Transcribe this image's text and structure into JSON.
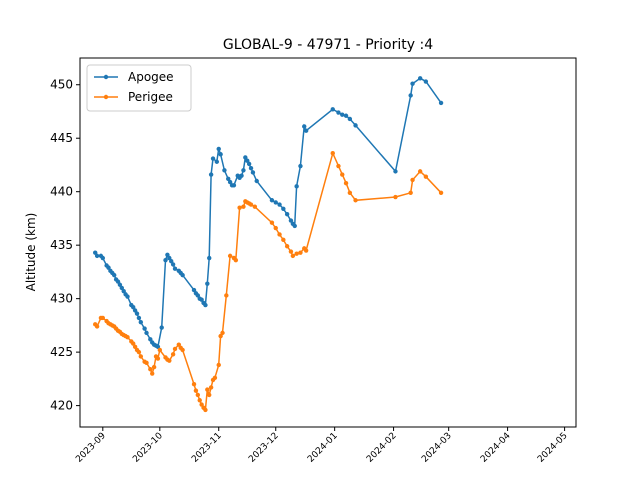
{
  "chart_data": {
    "type": "line",
    "title": "GLOBAL-9 - 47971 - Priority :4",
    "xlabel": "",
    "ylabel": "Altitude (km)",
    "ylim": [
      418,
      452.5
    ],
    "xlim": [
      "2023-08-20",
      "2024-05-07"
    ],
    "y_ticks": [
      420,
      425,
      430,
      435,
      440,
      445,
      450
    ],
    "x_ticks": [
      "2023-09",
      "2023-10",
      "2023-11",
      "2023-12",
      "2024-01",
      "2024-02",
      "2024-03",
      "2024-04",
      "2024-05"
    ],
    "grid": false,
    "legend": "top-left",
    "colors": {
      "Apogee": "#1f77b4",
      "Perigee": "#ff7f0e"
    },
    "series": [
      {
        "name": "Apogee",
        "points": [
          [
            "2023-08-28",
            434.3
          ],
          [
            "2023-08-29",
            434.0
          ],
          [
            "2023-08-31",
            434.0
          ],
          [
            "2023-09-01",
            433.8
          ],
          [
            "2023-09-03",
            433.1
          ],
          [
            "2023-09-04",
            432.9
          ],
          [
            "2023-09-05",
            432.6
          ],
          [
            "2023-09-06",
            432.4
          ],
          [
            "2023-09-07",
            432.2
          ],
          [
            "2023-09-08",
            431.8
          ],
          [
            "2023-09-09",
            431.6
          ],
          [
            "2023-09-10",
            431.3
          ],
          [
            "2023-09-11",
            431.0
          ],
          [
            "2023-09-12",
            430.7
          ],
          [
            "2023-09-13",
            430.4
          ],
          [
            "2023-09-14",
            430.2
          ],
          [
            "2023-09-16",
            429.4
          ],
          [
            "2023-09-17",
            429.2
          ],
          [
            "2023-09-18",
            428.9
          ],
          [
            "2023-09-19",
            428.6
          ],
          [
            "2023-09-20",
            428.2
          ],
          [
            "2023-09-21",
            427.8
          ],
          [
            "2023-09-23",
            427.2
          ],
          [
            "2023-09-24",
            426.8
          ],
          [
            "2023-09-26",
            426.2
          ],
          [
            "2023-09-27",
            425.9
          ],
          [
            "2023-09-28",
            425.7
          ],
          [
            "2023-09-29",
            425.6
          ],
          [
            "2023-09-30",
            425.5
          ],
          [
            "2023-10-02",
            427.3
          ],
          [
            "2023-10-04",
            433.6
          ],
          [
            "2023-10-05",
            434.1
          ],
          [
            "2023-10-06",
            433.8
          ],
          [
            "2023-10-07",
            433.5
          ],
          [
            "2023-10-08",
            433.2
          ],
          [
            "2023-10-09",
            432.8
          ],
          [
            "2023-10-11",
            432.6
          ],
          [
            "2023-10-12",
            432.4
          ],
          [
            "2023-10-13",
            432.2
          ],
          [
            "2023-10-19",
            430.8
          ],
          [
            "2023-10-20",
            430.5
          ],
          [
            "2023-10-21",
            430.3
          ],
          [
            "2023-10-22",
            430.0
          ],
          [
            "2023-10-23",
            429.9
          ],
          [
            "2023-10-24",
            429.6
          ],
          [
            "2023-10-25",
            429.4
          ],
          [
            "2023-10-26",
            431.4
          ],
          [
            "2023-10-27",
            433.8
          ],
          [
            "2023-10-28",
            441.6
          ],
          [
            "2023-10-29",
            443.1
          ],
          [
            "2023-10-31",
            442.8
          ],
          [
            "2023-11-01",
            444.0
          ],
          [
            "2023-11-02",
            443.5
          ],
          [
            "2023-11-04",
            442.0
          ],
          [
            "2023-11-06",
            441.2
          ],
          [
            "2023-11-07",
            440.9
          ],
          [
            "2023-11-08",
            440.6
          ],
          [
            "2023-11-09",
            440.6
          ],
          [
            "2023-11-11",
            441.5
          ],
          [
            "2023-11-12",
            441.3
          ],
          [
            "2023-11-13",
            441.5
          ],
          [
            "2023-11-14",
            442.0
          ],
          [
            "2023-11-15",
            443.2
          ],
          [
            "2023-11-16",
            442.9
          ],
          [
            "2023-11-17",
            442.6
          ],
          [
            "2023-11-18",
            442.2
          ],
          [
            "2023-11-19",
            441.8
          ],
          [
            "2023-11-21",
            441.0
          ],
          [
            "2023-11-29",
            439.2
          ],
          [
            "2023-12-01",
            439.0
          ],
          [
            "2023-12-03",
            438.8
          ],
          [
            "2023-12-05",
            438.4
          ],
          [
            "2023-12-07",
            437.9
          ],
          [
            "2023-12-09",
            437.3
          ],
          [
            "2023-12-10",
            437.0
          ],
          [
            "2023-12-11",
            436.8
          ],
          [
            "2023-12-12",
            440.5
          ],
          [
            "2023-12-14",
            442.4
          ],
          [
            "2023-12-16",
            446.1
          ],
          [
            "2023-12-17",
            445.7
          ],
          [
            "2023-12-31",
            447.7
          ],
          [
            "2024-01-03",
            447.4
          ],
          [
            "2024-01-05",
            447.2
          ],
          [
            "2024-01-07",
            447.1
          ],
          [
            "2024-01-09",
            446.8
          ],
          [
            "2024-01-12",
            446.2
          ],
          [
            "2024-02-02",
            441.9
          ],
          [
            "2024-02-10",
            449.0
          ],
          [
            "2024-02-11",
            450.1
          ],
          [
            "2024-02-15",
            450.6
          ],
          [
            "2024-02-18",
            450.3
          ],
          [
            "2024-02-26",
            448.3
          ]
        ]
      },
      {
        "name": "Perigee",
        "points": [
          [
            "2023-08-28",
            427.6
          ],
          [
            "2023-08-29",
            427.4
          ],
          [
            "2023-08-31",
            428.2
          ],
          [
            "2023-09-01",
            428.2
          ],
          [
            "2023-09-03",
            427.9
          ],
          [
            "2023-09-04",
            427.7
          ],
          [
            "2023-09-05",
            427.6
          ],
          [
            "2023-09-06",
            427.5
          ],
          [
            "2023-09-07",
            427.4
          ],
          [
            "2023-09-08",
            427.2
          ],
          [
            "2023-09-09",
            427.0
          ],
          [
            "2023-09-10",
            426.9
          ],
          [
            "2023-09-11",
            426.7
          ],
          [
            "2023-09-12",
            426.6
          ],
          [
            "2023-09-13",
            426.5
          ],
          [
            "2023-09-14",
            426.4
          ],
          [
            "2023-09-16",
            426.0
          ],
          [
            "2023-09-17",
            425.8
          ],
          [
            "2023-09-18",
            425.5
          ],
          [
            "2023-09-19",
            425.2
          ],
          [
            "2023-09-20",
            425.0
          ],
          [
            "2023-09-21",
            424.6
          ],
          [
            "2023-09-23",
            424.1
          ],
          [
            "2023-09-24",
            424.0
          ],
          [
            "2023-09-26",
            423.4
          ],
          [
            "2023-09-27",
            423.0
          ],
          [
            "2023-09-28",
            423.6
          ],
          [
            "2023-09-29",
            424.6
          ],
          [
            "2023-09-30",
            424.4
          ],
          [
            "2023-10-01",
            425.2
          ],
          [
            "2023-10-04",
            424.5
          ],
          [
            "2023-10-05",
            424.3
          ],
          [
            "2023-10-06",
            424.2
          ],
          [
            "2023-10-08",
            424.8
          ],
          [
            "2023-10-09",
            425.3
          ],
          [
            "2023-10-11",
            425.7
          ],
          [
            "2023-10-12",
            425.4
          ],
          [
            "2023-10-13",
            425.2
          ],
          [
            "2023-10-19",
            422.0
          ],
          [
            "2023-10-20",
            421.4
          ],
          [
            "2023-10-21",
            421.0
          ],
          [
            "2023-10-22",
            420.5
          ],
          [
            "2023-10-23",
            420.1
          ],
          [
            "2023-10-24",
            419.8
          ],
          [
            "2023-10-25",
            419.6
          ],
          [
            "2023-10-26",
            421.5
          ],
          [
            "2023-10-27",
            421.0
          ],
          [
            "2023-10-28",
            421.7
          ],
          [
            "2023-10-29",
            422.4
          ],
          [
            "2023-10-30",
            422.6
          ],
          [
            "2023-11-01",
            423.8
          ],
          [
            "2023-11-02",
            426.5
          ],
          [
            "2023-11-03",
            426.8
          ],
          [
            "2023-11-05",
            430.3
          ],
          [
            "2023-11-07",
            434.0
          ],
          [
            "2023-11-09",
            433.8
          ],
          [
            "2023-11-10",
            433.6
          ],
          [
            "2023-11-12",
            438.5
          ],
          [
            "2023-11-14",
            438.6
          ],
          [
            "2023-11-15",
            439.1
          ],
          [
            "2023-11-16",
            439.0
          ],
          [
            "2023-11-17",
            438.9
          ],
          [
            "2023-11-18",
            438.8
          ],
          [
            "2023-11-20",
            438.6
          ],
          [
            "2023-11-29",
            437.1
          ],
          [
            "2023-12-01",
            436.6
          ],
          [
            "2023-12-03",
            436.0
          ],
          [
            "2023-12-05",
            435.5
          ],
          [
            "2023-12-07",
            434.9
          ],
          [
            "2023-12-09",
            434.4
          ],
          [
            "2023-12-10",
            434.0
          ],
          [
            "2023-12-12",
            434.2
          ],
          [
            "2023-12-14",
            434.3
          ],
          [
            "2023-12-16",
            434.7
          ],
          [
            "2023-12-17",
            434.5
          ],
          [
            "2023-12-31",
            443.6
          ],
          [
            "2024-01-03",
            442.4
          ],
          [
            "2024-01-05",
            441.6
          ],
          [
            "2024-01-07",
            440.8
          ],
          [
            "2024-01-09",
            439.9
          ],
          [
            "2024-01-12",
            439.2
          ],
          [
            "2024-02-02",
            439.5
          ],
          [
            "2024-02-10",
            439.9
          ],
          [
            "2024-02-11",
            441.1
          ],
          [
            "2024-02-15",
            441.9
          ],
          [
            "2024-02-18",
            441.4
          ],
          [
            "2024-02-26",
            439.9
          ]
        ]
      }
    ]
  }
}
